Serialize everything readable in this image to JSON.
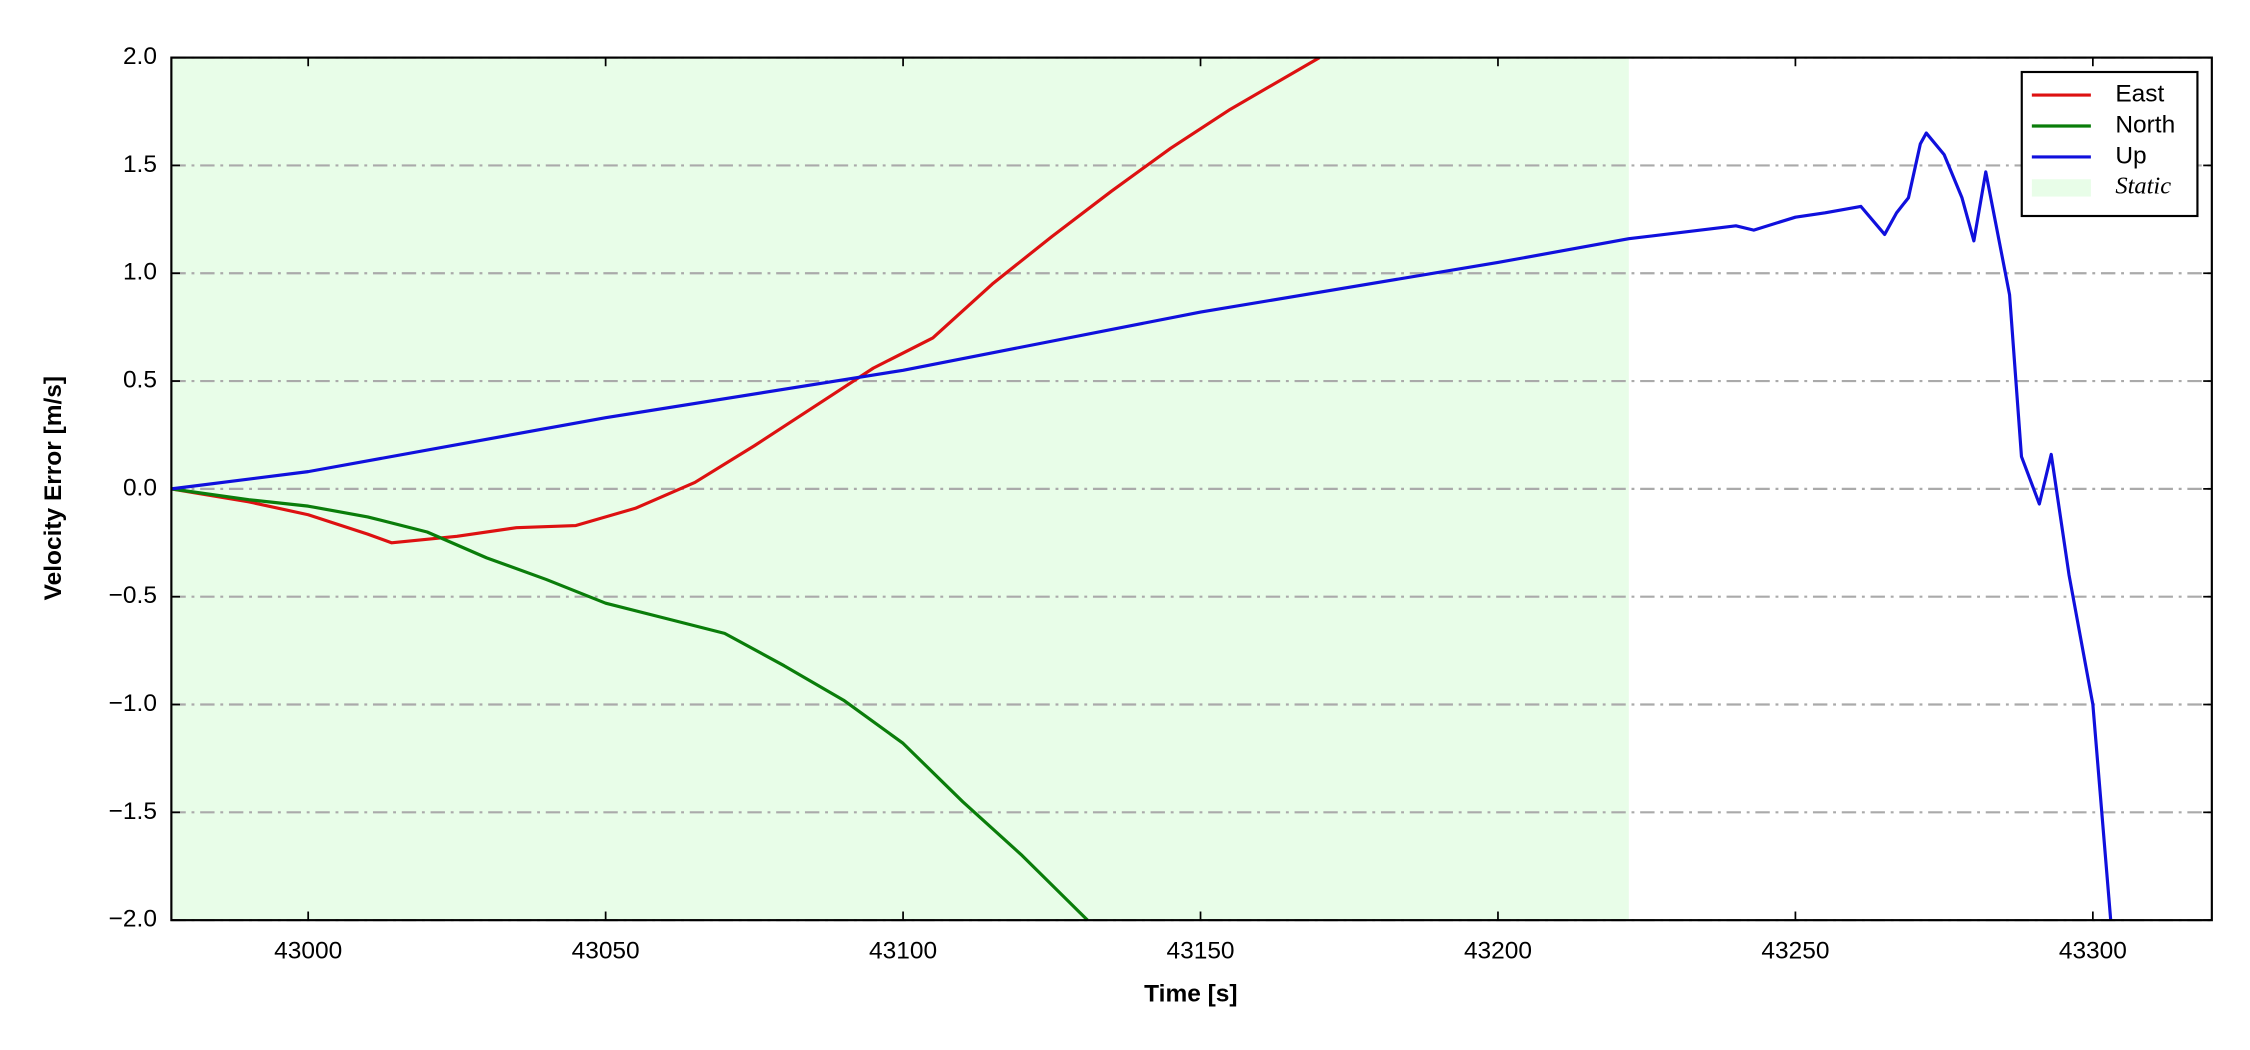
{
  "chart_data": {
    "type": "line",
    "xlabel": "Time [s]",
    "ylabel": "Velocity Error [m/s]",
    "xlim": [
      42977,
      43320
    ],
    "ylim": [
      -2.0,
      2.0
    ],
    "xticks": [
      43000,
      43050,
      43100,
      43150,
      43200,
      43250,
      43300
    ],
    "yticks": [
      {
        "value": -2.0,
        "label": "−2.0"
      },
      {
        "value": -1.5,
        "label": "−1.5"
      },
      {
        "value": -1.0,
        "label": "−1.0"
      },
      {
        "value": -0.5,
        "label": "−0.5"
      },
      {
        "value": 0.0,
        "label": "0.0"
      },
      {
        "value": 0.5,
        "label": "0.5"
      },
      {
        "value": 1.0,
        "label": "1.0"
      },
      {
        "value": 1.5,
        "label": "1.5"
      },
      {
        "value": 2.0,
        "label": "2.0"
      }
    ],
    "grid": true,
    "legend": "upper right",
    "shaded": {
      "name": "Static",
      "start": 42977,
      "end": 43222,
      "color": "#e8fde8"
    },
    "series": [
      {
        "name": "East",
        "color": "#dd1111",
        "x": [
          42977,
          42990,
          43000,
          43010,
          43014,
          43025,
          43035,
          43045,
          43055,
          43065,
          43075,
          43085,
          43095,
          43105,
          43115,
          43125,
          43135,
          43145,
          43155,
          43165,
          43170
        ],
        "values": [
          0,
          -0.06,
          -0.12,
          -0.21,
          -0.25,
          -0.22,
          -0.18,
          -0.17,
          -0.09,
          0.03,
          0.2,
          0.38,
          0.56,
          0.7,
          0.95,
          1.17,
          1.38,
          1.58,
          1.76,
          1.92,
          2.0
        ]
      },
      {
        "name": "North",
        "color": "#0a7d0a",
        "x": [
          42977,
          42990,
          43000,
          43010,
          43020,
          43030,
          43040,
          43050,
          43060,
          43070,
          43080,
          43090,
          43100,
          43110,
          43120,
          43131
        ],
        "values": [
          0,
          -0.05,
          -0.08,
          -0.13,
          -0.2,
          -0.32,
          -0.42,
          -0.53,
          -0.6,
          -0.67,
          -0.82,
          -0.98,
          -1.18,
          -1.45,
          -1.7,
          -2.0
        ]
      },
      {
        "name": "Up",
        "color": "#1010dd",
        "x": [
          42977,
          43000,
          43050,
          43100,
          43150,
          43200,
          43222,
          43240,
          43243,
          43250,
          43255,
          43261,
          43265,
          43267,
          43269,
          43271,
          43272,
          43275,
          43278,
          43280,
          43282,
          43286,
          43288,
          43291,
          43293,
          43296,
          43300,
          43303
        ],
        "values": [
          0,
          0.08,
          0.33,
          0.55,
          0.82,
          1.05,
          1.16,
          1.22,
          1.2,
          1.26,
          1.28,
          1.31,
          1.18,
          1.28,
          1.35,
          1.6,
          1.65,
          1.55,
          1.35,
          1.15,
          1.47,
          0.9,
          0.15,
          -0.07,
          0.16,
          -0.4,
          -1.0,
          -2.0
        ]
      }
    ]
  }
}
